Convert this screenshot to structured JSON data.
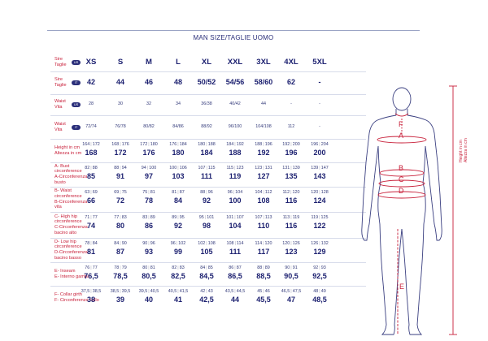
{
  "title": "MAN SIZE/TAGLIE UOMO",
  "rows": [
    {
      "label1": "Sire",
      "label2": "Taglie",
      "badge": "US",
      "style": "head",
      "values": [
        "XS",
        "S",
        "M",
        "L",
        "XL",
        "XXL",
        "3XL",
        "4XL",
        "5XL"
      ]
    },
    {
      "label1": "Sire",
      "label2": "Taglie",
      "badge": "IT",
      "style": "big",
      "values": [
        "42",
        "44",
        "46",
        "48",
        "50/52",
        "54/56",
        "58/60",
        "62",
        "-"
      ]
    },
    {
      "label1": "Waist",
      "label2": "Vita",
      "badge": "US",
      "style": "small1",
      "values": [
        "28",
        "30",
        "32",
        "34",
        "36/38",
        "40/42",
        "44",
        "-",
        "-"
      ]
    },
    {
      "label1": "Waist",
      "label2": "Vita",
      "badge": "IT",
      "style": "small1",
      "values": [
        "72/74",
        "76/78",
        "80/82",
        "84/86",
        "88/92",
        "96/100",
        "104/108",
        "112",
        "-"
      ]
    },
    {
      "label1": "Height in cm",
      "label2": "Altezza in cm",
      "style": "pair",
      "values": [
        [
          "164",
          "172",
          "168"
        ],
        [
          "168",
          "176",
          "172"
        ],
        [
          "172",
          "180",
          "176"
        ],
        [
          "176",
          "184",
          "180"
        ],
        [
          "180",
          "188",
          "184"
        ],
        [
          "184",
          "192",
          "188"
        ],
        [
          "188",
          "196",
          "192"
        ],
        [
          "192",
          "200",
          "196"
        ],
        [
          "196",
          "204",
          "200"
        ]
      ]
    },
    {
      "label1": "A- Bust",
      "label2": "circonference",
      "label3": "A-Circonferenza",
      "label4": "busto",
      "style": "pair",
      "values": [
        [
          "82",
          "88",
          "85"
        ],
        [
          "88",
          "94",
          "91"
        ],
        [
          "94",
          "100",
          "97"
        ],
        [
          "100",
          "106",
          "103"
        ],
        [
          "107",
          "115",
          "111"
        ],
        [
          "115",
          "123",
          "119"
        ],
        [
          "123",
          "131",
          "127"
        ],
        [
          "131",
          "139",
          "135"
        ],
        [
          "139",
          "147",
          "143"
        ]
      ]
    },
    {
      "label1": "B- Waist",
      "label2": "circonference",
      "label3": "B-Circonferenza",
      "label4": "vita",
      "style": "pair",
      "values": [
        [
          "63",
          "69",
          "66"
        ],
        [
          "69",
          "75",
          "72"
        ],
        [
          "75",
          "81",
          "78"
        ],
        [
          "81",
          "87",
          "84"
        ],
        [
          "88",
          "96",
          "92"
        ],
        [
          "96",
          "104",
          "100"
        ],
        [
          "104",
          "112",
          "108"
        ],
        [
          "112",
          "120",
          "116"
        ],
        [
          "120",
          "128",
          "124"
        ]
      ]
    },
    {
      "label1": "C- High hip",
      "label2": "circonference",
      "label3": "C-Circonferenza",
      "label4": "bacino alto",
      "style": "pair",
      "values": [
        [
          "71",
          "77",
          "74"
        ],
        [
          "77",
          "83",
          "80"
        ],
        [
          "83",
          "89",
          "86"
        ],
        [
          "89",
          "95",
          "92"
        ],
        [
          "95",
          "101",
          "98"
        ],
        [
          "101",
          "107",
          "104"
        ],
        [
          "107",
          "113",
          "110"
        ],
        [
          "113",
          "119",
          "116"
        ],
        [
          "119",
          "125",
          "122"
        ]
      ]
    },
    {
      "label1": "D- Low hip",
      "label2": "circonference",
      "label3": "D-Circonferenza",
      "label4": "bacino basso",
      "style": "pair",
      "values": [
        [
          "78",
          "84",
          "81"
        ],
        [
          "84",
          "90",
          "87"
        ],
        [
          "90",
          "96",
          "93"
        ],
        [
          "96",
          "102",
          "99"
        ],
        [
          "102",
          "108",
          "105"
        ],
        [
          "108",
          "114",
          "111"
        ],
        [
          "114",
          "120",
          "117"
        ],
        [
          "120",
          "126",
          "123"
        ],
        [
          "126",
          "132",
          "129"
        ]
      ]
    },
    {
      "label1": "E- Inseam",
      "label2": "E- Interno gamba",
      "style": "pair",
      "values": [
        [
          "76",
          "77",
          "76,5"
        ],
        [
          "78",
          "79",
          "78,5"
        ],
        [
          "80",
          "81",
          "80,5"
        ],
        [
          "82",
          "83",
          "82,5"
        ],
        [
          "84",
          "85",
          "84,5"
        ],
        [
          "86",
          "87",
          "86,5"
        ],
        [
          "88",
          "89",
          "88,5"
        ],
        [
          "90",
          "91",
          "90,5"
        ],
        [
          "92",
          "93",
          "92,5"
        ]
      ]
    },
    {
      "label1": "F- Collar girth",
      "label2": "F- Circonferenza collo",
      "style": "pair",
      "values": [
        [
          "37,5",
          "38,5",
          "38"
        ],
        [
          "38,5",
          "39,5",
          "39"
        ],
        [
          "39,5",
          "40,5",
          "40"
        ],
        [
          "40,5",
          "41,5",
          "41"
        ],
        [
          "42",
          "43",
          "42,5"
        ],
        [
          "43,5",
          "44,5",
          "44"
        ],
        [
          "45",
          "46",
          "45,5"
        ],
        [
          "46,5",
          "47,5",
          "47"
        ],
        [
          "48",
          "49",
          "48,5"
        ]
      ]
    }
  ],
  "figure": {
    "labels": [
      "A",
      "B",
      "C",
      "D",
      "E",
      "F"
    ],
    "height_label1": "Height in cm",
    "height_label2": "Altezza in cm"
  },
  "colors": {
    "navy": "#1c2070",
    "red": "#c8203a"
  }
}
